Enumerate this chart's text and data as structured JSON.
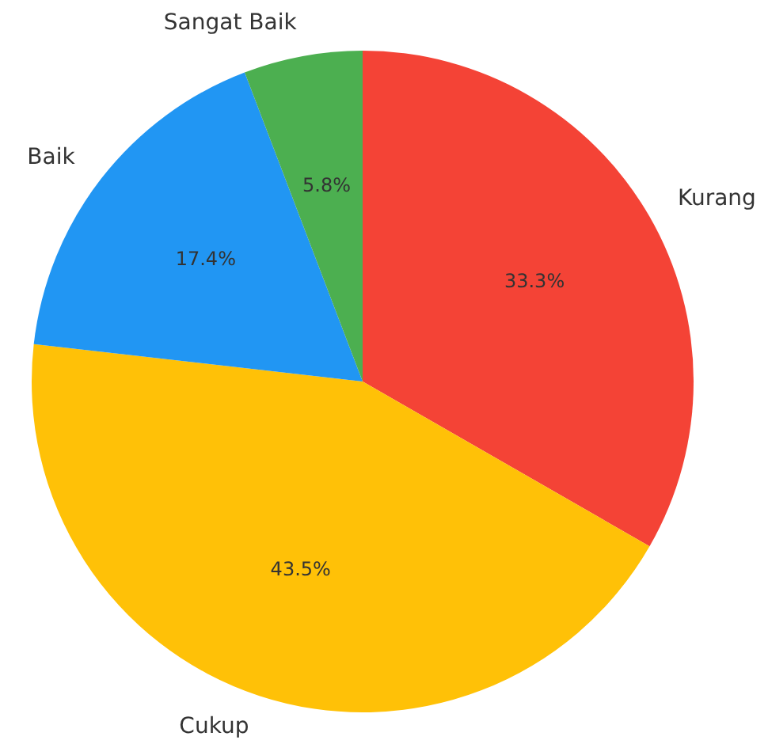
{
  "chart_data": {
    "type": "pie",
    "categories": [
      "Kurang",
      "Cukup",
      "Baik",
      "Sangat Baik"
    ],
    "values": [
      33.3,
      43.5,
      17.4,
      5.8
    ],
    "colors": [
      "#f44336",
      "#ffc107",
      "#2196f3",
      "#4caf50"
    ],
    "value_labels": [
      "33.3%",
      "43.5%",
      "17.4%",
      "5.8%"
    ],
    "legend": false
  }
}
